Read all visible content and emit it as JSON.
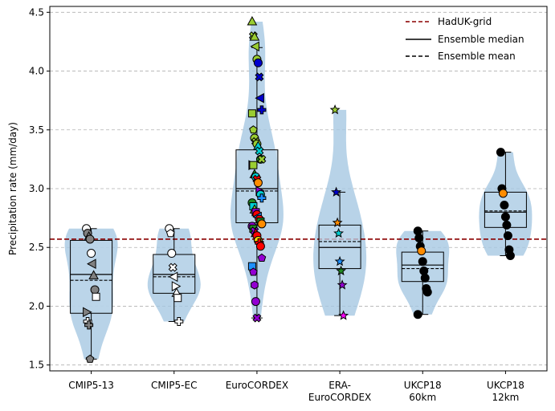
{
  "chart_data": {
    "type": "violin+box+scatter",
    "ylabel": "Precipitation rate (mm/day)",
    "ylim": [
      1.45,
      4.55
    ],
    "yticks": [
      1.5,
      2.0,
      2.5,
      3.0,
      3.5,
      4.0,
      4.5
    ],
    "ytick_labels": [
      "1.5",
      "2.0",
      "2.5",
      "3.0",
      "3.5",
      "4.0",
      "4.5"
    ],
    "grid": "horizontal dashed",
    "legend_position": "top-right",
    "legend": [
      {
        "label": "HadUK-grid",
        "style": "dashed",
        "color": "#8b0000"
      },
      {
        "label": "Ensemble median",
        "style": "solid",
        "color": "#000000"
      },
      {
        "label": "Ensemble mean",
        "style": "dashed",
        "color": "#000000"
      }
    ],
    "reference_line": {
      "label": "HadUK-grid",
      "value": 2.57,
      "color": "#8b0000"
    },
    "colors": {
      "violin": "#a6c8e2",
      "box": "#bcd5ea",
      "grid": "#b0b0b0"
    },
    "groups": [
      {
        "label": "CMIP5-13",
        "min": 1.55,
        "q1": 1.94,
        "median": 2.27,
        "mean": 2.22,
        "q3": 2.56,
        "max": 2.66,
        "points": [
          {
            "y": 2.66,
            "m": "circle",
            "c": "#ffffff"
          },
          {
            "y": 2.62,
            "m": "circle",
            "c": "#808080"
          },
          {
            "y": 2.59,
            "m": "tri-up",
            "c": "#808080"
          },
          {
            "y": 2.57,
            "m": "circle",
            "c": "#808080"
          },
          {
            "y": 2.45,
            "m": "circle",
            "c": "#ffffff"
          },
          {
            "y": 2.36,
            "m": "tri-left",
            "c": "#808080"
          },
          {
            "y": 2.26,
            "m": "tri-up",
            "c": "#808080"
          },
          {
            "y": 2.14,
            "m": "circle",
            "c": "#808080"
          },
          {
            "y": 2.08,
            "m": "square",
            "c": "#ffffff"
          },
          {
            "y": 1.95,
            "m": "tri-right",
            "c": "#808080"
          },
          {
            "y": 1.87,
            "m": "plus",
            "c": "#ffffff"
          },
          {
            "y": 1.84,
            "m": "plus",
            "c": "#808080"
          },
          {
            "y": 1.55,
            "m": "pentagon",
            "c": "#808080"
          }
        ]
      },
      {
        "label": "CMIP5-EC",
        "min": 1.87,
        "q1": 2.11,
        "median": 2.27,
        "mean": 2.25,
        "q3": 2.44,
        "max": 2.66,
        "points": [
          {
            "y": 2.66,
            "m": "circle",
            "c": "#ffffff"
          },
          {
            "y": 2.62,
            "m": "pentagon",
            "c": "#ffffff"
          },
          {
            "y": 2.45,
            "m": "circle",
            "c": "#ffffff"
          },
          {
            "y": 2.33,
            "m": "x",
            "c": "#ffffff"
          },
          {
            "y": 2.25,
            "m": "tri-left",
            "c": "#ffffff"
          },
          {
            "y": 2.17,
            "m": "tri-right",
            "c": "#ffffff"
          },
          {
            "y": 2.11,
            "m": "tri-up",
            "c": "#ffffff"
          },
          {
            "y": 2.07,
            "m": "square",
            "c": "#ffffff"
          },
          {
            "y": 1.87,
            "m": "plus",
            "c": "#ffffff"
          }
        ]
      },
      {
        "label": "EuroCORDEX",
        "min": 1.9,
        "q1": 2.71,
        "median": 3.0,
        "mean": 2.98,
        "q3": 3.33,
        "max": 4.2,
        "points": [
          {
            "y": 4.42,
            "m": "tri-up",
            "c": "#9acd32"
          },
          {
            "y": 4.3,
            "m": "x",
            "c": "#9acd32"
          },
          {
            "y": 4.29,
            "m": "tri-up",
            "c": "#9acd32"
          },
          {
            "y": 4.21,
            "m": "tri-left",
            "c": "#9acd32"
          },
          {
            "y": 4.1,
            "m": "circle",
            "c": "#9acd32"
          },
          {
            "y": 4.07,
            "m": "circle",
            "c": "#0000cd"
          },
          {
            "y": 3.95,
            "m": "x",
            "c": "#0000cd"
          },
          {
            "y": 3.77,
            "m": "tri-left",
            "c": "#0000cd"
          },
          {
            "y": 3.67,
            "m": "plus",
            "c": "#0000cd"
          },
          {
            "y": 3.64,
            "m": "square",
            "c": "#9acd32"
          },
          {
            "y": 3.5,
            "m": "pentagon",
            "c": "#9acd32"
          },
          {
            "y": 3.43,
            "m": "circle",
            "c": "#9acd32"
          },
          {
            "y": 3.4,
            "m": "x",
            "c": "#9acd32"
          },
          {
            "y": 3.38,
            "m": "circle",
            "c": "#9acd32"
          },
          {
            "y": 3.36,
            "m": "tri-up",
            "c": "#00ced1"
          },
          {
            "y": 3.32,
            "m": "x",
            "c": "#00ced1"
          },
          {
            "y": 3.25,
            "m": "circle",
            "c": "#228b22"
          },
          {
            "y": 3.25,
            "m": "x",
            "c": "#9acd32"
          },
          {
            "y": 3.2,
            "m": "tri-right",
            "c": "#9400d3"
          },
          {
            "y": 3.2,
            "m": "square",
            "c": "#9acd32"
          },
          {
            "y": 3.12,
            "m": "tri-up",
            "c": "#228b22"
          },
          {
            "y": 3.1,
            "m": "circle",
            "c": "#00ced1"
          },
          {
            "y": 3.08,
            "m": "x",
            "c": "#ff0000"
          },
          {
            "y": 3.05,
            "m": "circle",
            "c": "#ff8c00"
          },
          {
            "y": 2.98,
            "m": "tri-right",
            "c": "#9400d3"
          },
          {
            "y": 2.95,
            "m": "circle",
            "c": "#00ced1"
          },
          {
            "y": 2.92,
            "m": "plus",
            "c": "#1e90ff"
          },
          {
            "y": 2.88,
            "m": "circle",
            "c": "#228b22"
          },
          {
            "y": 2.85,
            "m": "square",
            "c": "#00ced1"
          },
          {
            "y": 2.82,
            "m": "tri-up",
            "c": "#9acd32"
          },
          {
            "y": 2.8,
            "m": "square",
            "c": "#9400d3"
          },
          {
            "y": 2.78,
            "m": "circle",
            "c": "#ff0000"
          },
          {
            "y": 2.76,
            "m": "tri-left",
            "c": "#1e90ff"
          },
          {
            "y": 2.74,
            "m": "circle",
            "c": "#ff0000"
          },
          {
            "y": 2.72,
            "m": "square",
            "c": "#228b22"
          },
          {
            "y": 2.7,
            "m": "circle",
            "c": "#ff8c00"
          },
          {
            "y": 2.68,
            "m": "circle",
            "c": "#9400d3"
          },
          {
            "y": 2.66,
            "m": "square",
            "c": "#228b22"
          },
          {
            "y": 2.64,
            "m": "x",
            "c": "#9400d3"
          },
          {
            "y": 2.62,
            "m": "tri-up",
            "c": "#ff0000"
          },
          {
            "y": 2.6,
            "m": "circle",
            "c": "#ff0000"
          },
          {
            "y": 2.56,
            "m": "circle",
            "c": "#ffd700"
          },
          {
            "y": 2.54,
            "m": "plus",
            "c": "#ff0000"
          },
          {
            "y": 2.51,
            "m": "circle",
            "c": "#ff0000"
          },
          {
            "y": 2.41,
            "m": "pentagon",
            "c": "#9400d3"
          },
          {
            "y": 2.34,
            "m": "square",
            "c": "#1e90ff"
          },
          {
            "y": 2.29,
            "m": "pentagon",
            "c": "#9400d3"
          },
          {
            "y": 2.18,
            "m": "hexagon",
            "c": "#9400d3"
          },
          {
            "y": 2.04,
            "m": "circle",
            "c": "#9400d3"
          },
          {
            "y": 1.9,
            "m": "x",
            "c": "#9400d3"
          }
        ]
      },
      {
        "label": "ERA-\nEuroCORDEX",
        "min": 1.92,
        "q1": 2.32,
        "median": 2.5,
        "mean": 2.55,
        "q3": 2.69,
        "max": 2.97,
        "points": [
          {
            "y": 3.67,
            "m": "star",
            "c": "#9acd32"
          },
          {
            "y": 2.97,
            "m": "star",
            "c": "#0000cd"
          },
          {
            "y": 2.71,
            "m": "star",
            "c": "#ff8c00"
          },
          {
            "y": 2.62,
            "m": "star",
            "c": "#00ced1"
          },
          {
            "y": 2.38,
            "m": "star",
            "c": "#1e90ff"
          },
          {
            "y": 2.3,
            "m": "star",
            "c": "#228b22"
          },
          {
            "y": 2.18,
            "m": "star",
            "c": "#9400d3"
          },
          {
            "y": 1.92,
            "m": "star",
            "c": "#ff00ff"
          }
        ]
      },
      {
        "label": "UKCP18\n60km",
        "min": 1.93,
        "q1": 2.21,
        "median": 2.35,
        "mean": 2.32,
        "q3": 2.46,
        "max": 2.64,
        "points": [
          {
            "y": 2.64,
            "m": "circle",
            "c": "#000000"
          },
          {
            "y": 2.58,
            "m": "circle",
            "c": "#000000"
          },
          {
            "y": 2.51,
            "m": "circle",
            "c": "#000000"
          },
          {
            "y": 2.47,
            "m": "circle",
            "c": "#ff8c00"
          },
          {
            "y": 2.38,
            "m": "circle",
            "c": "#000000"
          },
          {
            "y": 2.3,
            "m": "circle",
            "c": "#000000"
          },
          {
            "y": 2.24,
            "m": "circle",
            "c": "#000000"
          },
          {
            "y": 2.15,
            "m": "circle",
            "c": "#000000"
          },
          {
            "y": 2.12,
            "m": "circle",
            "c": "#000000"
          },
          {
            "y": 1.93,
            "m": "circle",
            "c": "#000000"
          }
        ]
      },
      {
        "label": "UKCP18\n12km",
        "min": 2.43,
        "q1": 2.67,
        "median": 2.8,
        "mean": 2.81,
        "q3": 2.97,
        "max": 3.31,
        "points": [
          {
            "y": 3.31,
            "m": "circle",
            "c": "#000000"
          },
          {
            "y": 3.0,
            "m": "circle",
            "c": "#000000"
          },
          {
            "y": 2.96,
            "m": "circle",
            "c": "#ff8c00"
          },
          {
            "y": 2.86,
            "m": "circle",
            "c": "#000000"
          },
          {
            "y": 2.76,
            "m": "circle",
            "c": "#000000"
          },
          {
            "y": 2.69,
            "m": "circle",
            "c": "#000000"
          },
          {
            "y": 2.6,
            "m": "circle",
            "c": "#000000"
          },
          {
            "y": 2.48,
            "m": "circle",
            "c": "#000000"
          },
          {
            "y": 2.43,
            "m": "circle",
            "c": "#000000"
          }
        ]
      }
    ]
  }
}
